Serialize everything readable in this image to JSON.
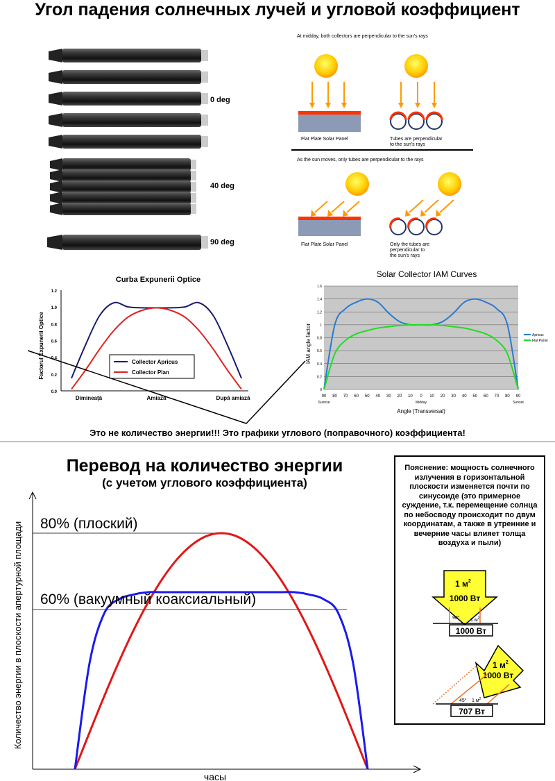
{
  "page_title": "Угол падения солнечных лучей и угловой коэффициент",
  "tubes": {
    "labels": [
      "0 deg",
      "40 deg",
      "90 deg"
    ]
  },
  "sun_diagram": {
    "top_caption": "At midday, both collectors are perpendicular to the sun's rays",
    "flat_label_1": "Flat Plate Solar Panel",
    "tubes_label_1a": "Tubes are perpendicular",
    "tubes_label_1b": "to the sun's rays",
    "mid_caption": "As the sun moves, only tubes are perpendicular to the rays",
    "flat_label_2": "Flat Plate Solar Panel",
    "tubes_label_2a": "Only the tubes are",
    "tubes_label_2b": "perpendicular to",
    "tubes_label_2c": "the sun's rays"
  },
  "warning_text": "Это не количество энергии!!! Это графики углового (поправочного) коэффициента!",
  "energy_title": "Перевод на количество энергии",
  "energy_subtitle": "(с учетом углового коэффициента)",
  "note": {
    "text": "Пояснение: мощность солнечного излучения в горизонтальной плоскости изменяется почти по синусоиде (это примерное суждение, т.к. перемещение солнца по небосводу происходит по двум координатам, а также в утренние и вечерние часы влияет толща воздуха и пыли)",
    "box1_area": "1 м",
    "box1_power": "1000 Вт",
    "box1_angle": "90°",
    "box1_base": "1 м",
    "box1_result": "1000 Вт",
    "box2_area": "1 м",
    "box2_power": "1000 Вт",
    "box2_angle": "45°",
    "box2_base": "1 м",
    "box2_result": "707 Вт",
    "sup": "2",
    "colors": {
      "arrow": "#ffff33",
      "line": "#e87830"
    }
  },
  "chart_data": [
    {
      "type": "line",
      "title": "Curba Expunerii Optice",
      "ylabel": "Factorul Expunerii Optice",
      "xlabel": "",
      "ylim": [
        0,
        1.2
      ],
      "yticks": [
        "0.0",
        "0.2",
        "0.4",
        "0.6",
        "0.8",
        "1.0",
        "1.2"
      ],
      "xticks": [
        "Dimineață",
        "Amiază",
        "După amiază"
      ],
      "x": [
        0,
        1,
        2,
        3,
        4,
        5,
        6,
        7,
        8,
        9,
        10,
        11,
        12
      ],
      "series": [
        {
          "name": "Collector Apricus",
          "color": "#1a1a6e",
          "values": [
            0.15,
            0.55,
            0.9,
            1.05,
            1.0,
            0.99,
            0.99,
            0.99,
            1.0,
            1.05,
            0.9,
            0.55,
            0.15
          ]
        },
        {
          "name": "Collector Plan",
          "color": "#e02020",
          "values": [
            0.02,
            0.25,
            0.5,
            0.72,
            0.88,
            0.96,
            0.99,
            0.96,
            0.88,
            0.72,
            0.5,
            0.25,
            0.02
          ]
        }
      ],
      "legend": "center"
    },
    {
      "type": "line",
      "title": "Solar Collector IAM Curves",
      "ylabel": "IAM angle factor",
      "xlabel": "Angle (Transversal)",
      "ylim": [
        0,
        1.6
      ],
      "yticks": [
        "0",
        "0.2",
        "0.4",
        "0.6",
        "0.8",
        "1",
        "1.2",
        "1.4",
        "1.6"
      ],
      "xticks": [
        "90",
        "80",
        "70",
        "60",
        "50",
        "40",
        "30",
        "20",
        "10",
        "0",
        "10",
        "20",
        "30",
        "40",
        "50",
        "60",
        "70",
        "80",
        "90"
      ],
      "x_annotations": {
        "left": "Sunrise",
        "center": "Midday",
        "right": "Sunset"
      },
      "x": [
        -90,
        -80,
        -70,
        -60,
        -50,
        -40,
        -30,
        -20,
        -10,
        0,
        10,
        20,
        30,
        40,
        50,
        60,
        70,
        80,
        90
      ],
      "series": [
        {
          "name": "Apricus",
          "color": "#2a7ad0",
          "values": [
            0,
            1.0,
            1.25,
            1.35,
            1.4,
            1.35,
            1.18,
            1.05,
            1.0,
            1.0,
            1.0,
            1.05,
            1.18,
            1.35,
            1.4,
            1.35,
            1.25,
            1.0,
            0
          ]
        },
        {
          "name": "Flat Panel",
          "color": "#22dd22",
          "values": [
            0,
            0.55,
            0.76,
            0.86,
            0.91,
            0.95,
            0.97,
            0.99,
            1.0,
            1.0,
            1.0,
            0.99,
            0.97,
            0.95,
            0.91,
            0.86,
            0.76,
            0.55,
            0
          ]
        }
      ],
      "legend": "right"
    },
    {
      "type": "line",
      "title": "",
      "ylabel": "Количество энергии в плоскости апертурной площади",
      "xlabel": "часы",
      "annotations": [
        "80% (плоский)",
        "60% (вакуумный коаксиальный)"
      ],
      "ylim": [
        0,
        1
      ],
      "x": [
        0,
        0.05,
        0.1,
        0.15,
        0.2,
        0.25,
        0.3,
        0.35,
        0.4,
        0.45,
        0.5,
        0.55,
        0.6,
        0.65,
        0.7,
        0.75,
        0.8,
        0.85,
        0.9,
        0.95,
        1
      ],
      "series": [
        {
          "name": "",
          "color": "#e01818",
          "values": [
            0,
            0.156,
            0.309,
            0.454,
            0.588,
            0.707,
            0.809,
            0.891,
            0.951,
            0.988,
            1.0,
            0.988,
            0.951,
            0.891,
            0.809,
            0.707,
            0.588,
            0.454,
            0.309,
            0.156,
            0
          ]
        },
        {
          "name": "",
          "color": "#1a1aee",
          "values": [
            0,
            0.45,
            0.66,
            0.72,
            0.74,
            0.75,
            0.75,
            0.75,
            0.75,
            0.75,
            0.75,
            0.75,
            0.75,
            0.75,
            0.75,
            0.75,
            0.74,
            0.72,
            0.66,
            0.45,
            0
          ]
        }
      ]
    }
  ]
}
